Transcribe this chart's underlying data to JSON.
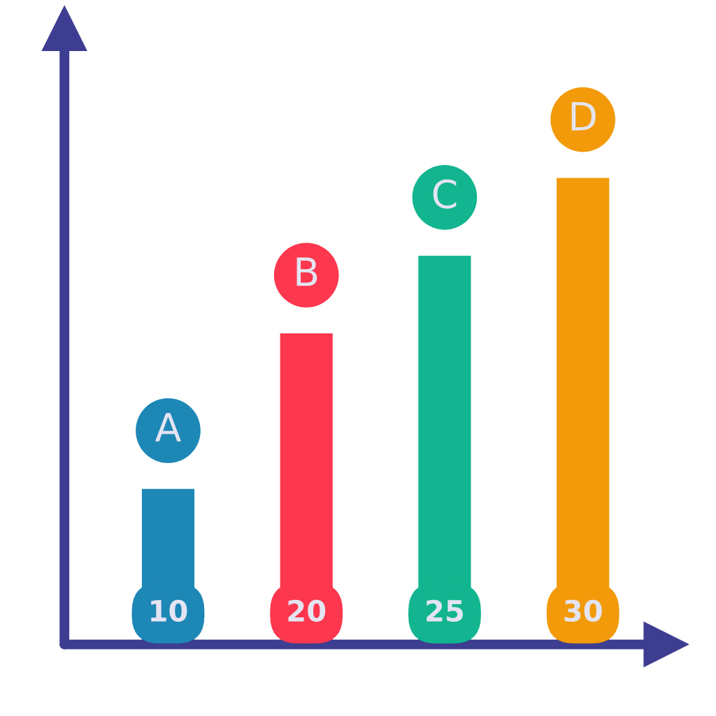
{
  "chart_data": {
    "type": "bar",
    "categories": [
      "A",
      "B",
      "C",
      "D"
    ],
    "values": [
      10,
      20,
      25,
      30
    ],
    "colors": [
      "#1d87b6",
      "#fc374e",
      "#12b58f",
      "#f29a0a"
    ],
    "data_labels": true,
    "tick_labels": false
  }
}
